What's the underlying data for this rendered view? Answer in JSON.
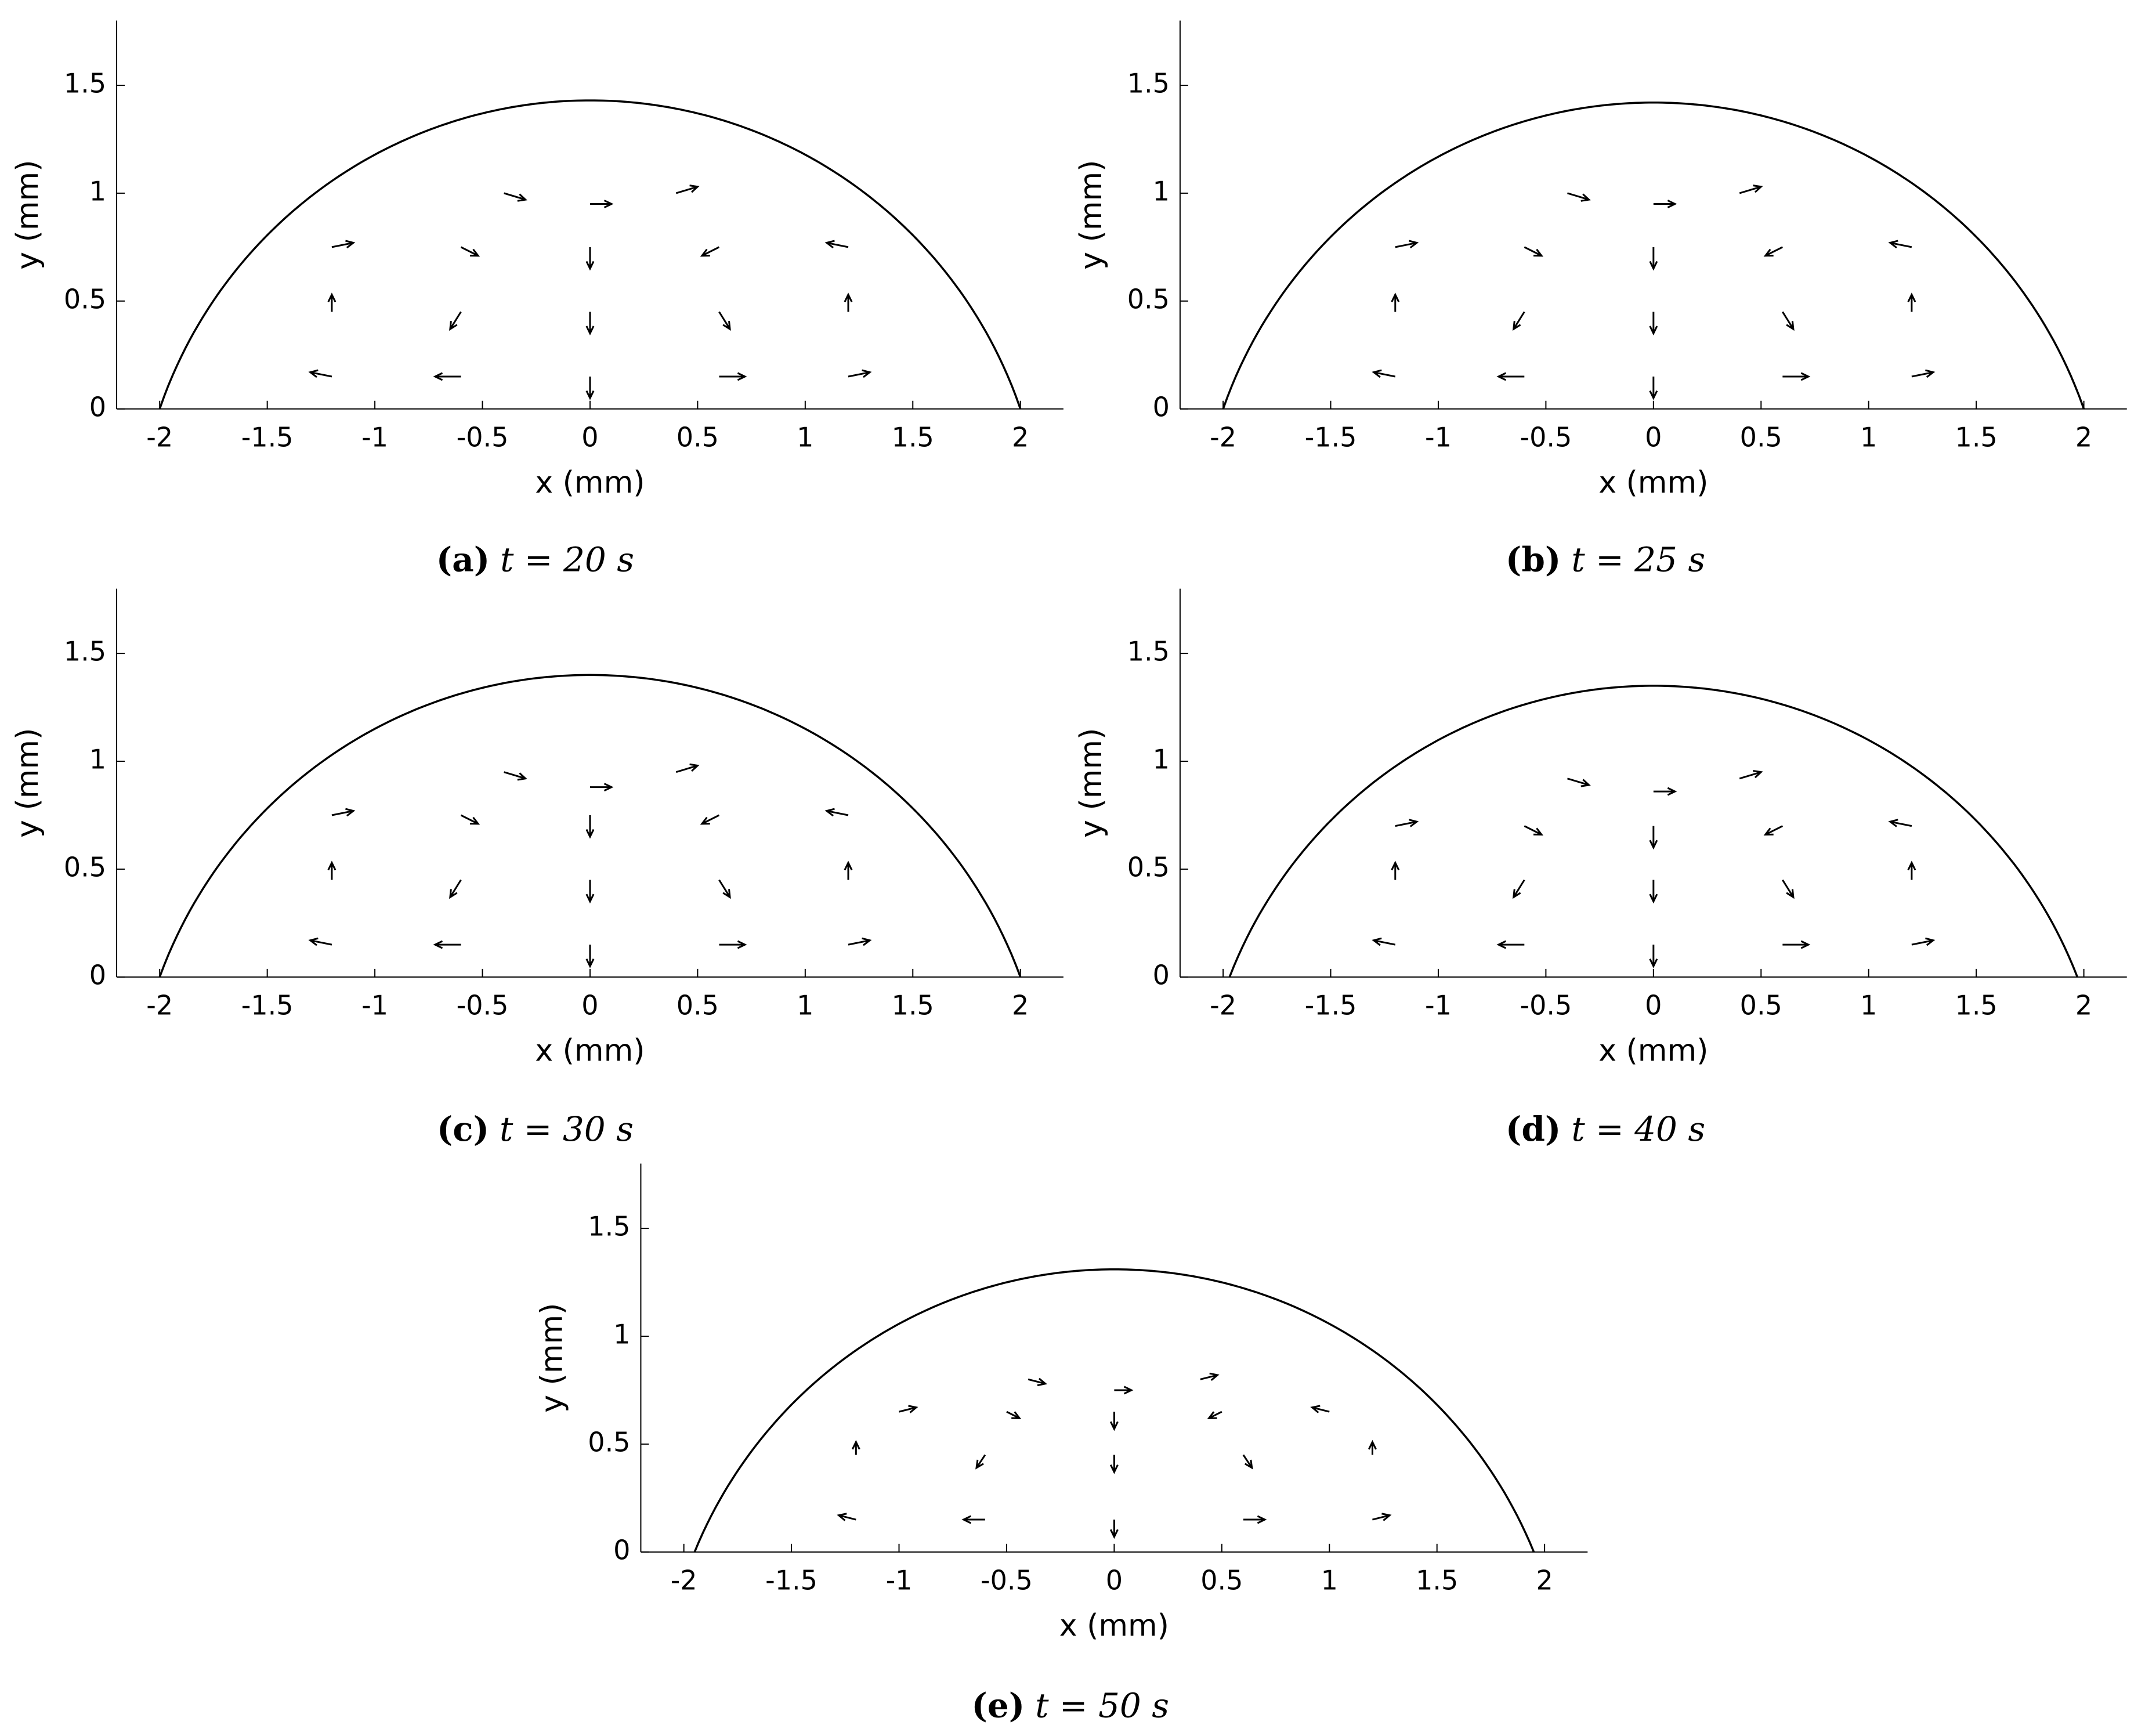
{
  "chart_data": [
    {
      "type": "quiver",
      "label": "(a)",
      "caption": "t = 20 s",
      "xlabel": "x (mm)",
      "ylabel": "y (mm)",
      "color": "#000000",
      "xlim": [
        -2.2,
        2.2
      ],
      "ylim": [
        0,
        1.8
      ],
      "xticks": [
        -2,
        -1.5,
        -1,
        -0.5,
        0,
        0.5,
        1,
        1.5,
        2
      ],
      "yticks": [
        0,
        0.5,
        1,
        1.5
      ],
      "drop": {
        "radius": 2,
        "height": 1.43
      },
      "vectors": {
        "x": [
          -1.2,
          -0.6,
          0,
          0.6,
          1.2,
          -1.2,
          -0.6,
          0,
          0.6,
          1.2,
          -1.2,
          -0.6,
          0,
          0.6,
          1.2,
          -0.4,
          0,
          0.4
        ],
        "y": [
          0.15,
          0.15,
          0.15,
          0.15,
          0.15,
          0.45,
          0.45,
          0.45,
          0.45,
          0.45,
          0.75,
          0.75,
          0.75,
          0.75,
          0.75,
          1.0,
          0.95,
          1.0
        ],
        "u": [
          -0.1,
          -0.12,
          0,
          0.12,
          0.1,
          0,
          -0.05,
          0,
          0.05,
          0,
          0.1,
          0.08,
          0,
          -0.08,
          -0.1,
          0.1,
          0.1,
          0.1
        ],
        "v": [
          0.02,
          0,
          -0.1,
          0,
          0.02,
          0.08,
          -0.08,
          -0.1,
          -0.08,
          0.08,
          0.02,
          -0.04,
          -0.1,
          -0.04,
          0.02,
          -0.03,
          0,
          0.03
        ]
      }
    },
    {
      "type": "quiver",
      "label": "(b)",
      "caption": "t = 25 s",
      "xlabel": "x (mm)",
      "ylabel": "y (mm)",
      "color": "#000000",
      "xlim": [
        -2.2,
        2.2
      ],
      "ylim": [
        0,
        1.8
      ],
      "xticks": [
        -2,
        -1.5,
        -1,
        -0.5,
        0,
        0.5,
        1,
        1.5,
        2
      ],
      "yticks": [
        0,
        0.5,
        1,
        1.5
      ],
      "drop": {
        "radius": 2,
        "height": 1.42
      },
      "vectors": {
        "x": [
          -1.2,
          -0.6,
          0,
          0.6,
          1.2,
          -1.2,
          -0.6,
          0,
          0.6,
          1.2,
          -1.2,
          -0.6,
          0,
          0.6,
          1.2,
          -0.4,
          0,
          0.4
        ],
        "y": [
          0.15,
          0.15,
          0.15,
          0.15,
          0.15,
          0.45,
          0.45,
          0.45,
          0.45,
          0.45,
          0.75,
          0.75,
          0.75,
          0.75,
          0.75,
          1.0,
          0.95,
          1.0
        ],
        "u": [
          -0.1,
          -0.12,
          0,
          0.12,
          0.1,
          0,
          -0.05,
          0,
          0.05,
          0,
          0.1,
          0.08,
          0,
          -0.08,
          -0.1,
          0.1,
          0.1,
          0.1
        ],
        "v": [
          0.02,
          0,
          -0.1,
          0,
          0.02,
          0.08,
          -0.08,
          -0.1,
          -0.08,
          0.08,
          0.02,
          -0.04,
          -0.1,
          -0.04,
          0.02,
          -0.03,
          0,
          0.03
        ]
      }
    },
    {
      "type": "quiver",
      "label": "(c)",
      "caption": "t = 30 s",
      "xlabel": "x (mm)",
      "ylabel": "y (mm)",
      "color": "#000000",
      "xlim": [
        -2.2,
        2.2
      ],
      "ylim": [
        0,
        1.8
      ],
      "xticks": [
        -2,
        -1.5,
        -1,
        -0.5,
        0,
        0.5,
        1,
        1.5,
        2
      ],
      "yticks": [
        0,
        0.5,
        1,
        1.5
      ],
      "drop": {
        "radius": 2,
        "height": 1.4
      },
      "vectors": {
        "x": [
          -1.2,
          -0.6,
          0,
          0.6,
          1.2,
          -1.2,
          -0.6,
          0,
          0.6,
          1.2,
          -1.2,
          -0.6,
          0,
          0.6,
          1.2,
          -0.4,
          0,
          0.4
        ],
        "y": [
          0.15,
          0.15,
          0.15,
          0.15,
          0.15,
          0.45,
          0.45,
          0.45,
          0.45,
          0.45,
          0.75,
          0.75,
          0.75,
          0.75,
          0.75,
          0.95,
          0.88,
          0.95
        ],
        "u": [
          -0.1,
          -0.12,
          0,
          0.12,
          0.1,
          0,
          -0.05,
          0,
          0.05,
          0,
          0.1,
          0.08,
          0,
          -0.08,
          -0.1,
          0.1,
          0.1,
          0.1
        ],
        "v": [
          0.02,
          0,
          -0.1,
          0,
          0.02,
          0.08,
          -0.08,
          -0.1,
          -0.08,
          0.08,
          0.02,
          -0.04,
          -0.1,
          -0.04,
          0.02,
          -0.03,
          0,
          0.03
        ]
      }
    },
    {
      "type": "quiver",
      "label": "(d)",
      "caption": "t = 40 s",
      "xlabel": "x (mm)",
      "ylabel": "y (mm)",
      "color": "#000000",
      "xlim": [
        -2.2,
        2.2
      ],
      "ylim": [
        0,
        1.8
      ],
      "xticks": [
        -2,
        -1.5,
        -1,
        -0.5,
        0,
        0.5,
        1,
        1.5,
        2
      ],
      "yticks": [
        0,
        0.5,
        1,
        1.5
      ],
      "drop": {
        "radius": 1.97,
        "height": 1.35
      },
      "vectors": {
        "x": [
          -1.2,
          -0.6,
          0,
          0.6,
          1.2,
          -1.2,
          -0.6,
          0,
          0.6,
          1.2,
          -1.2,
          -0.6,
          0,
          0.6,
          1.2,
          -0.4,
          0,
          0.4
        ],
        "y": [
          0.15,
          0.15,
          0.15,
          0.15,
          0.15,
          0.45,
          0.45,
          0.45,
          0.45,
          0.45,
          0.7,
          0.7,
          0.7,
          0.7,
          0.7,
          0.92,
          0.86,
          0.92
        ],
        "u": [
          -0.1,
          -0.12,
          0,
          0.12,
          0.1,
          0,
          -0.05,
          0,
          0.05,
          0,
          0.1,
          0.08,
          0,
          -0.08,
          -0.1,
          0.1,
          0.1,
          0.1
        ],
        "v": [
          0.02,
          0,
          -0.1,
          0,
          0.02,
          0.08,
          -0.08,
          -0.1,
          -0.08,
          0.08,
          0.02,
          -0.04,
          -0.1,
          -0.04,
          0.02,
          -0.03,
          0,
          0.03
        ]
      }
    },
    {
      "type": "quiver",
      "label": "(e)",
      "caption": "t = 50 s",
      "xlabel": "x (mm)",
      "ylabel": "y (mm)",
      "color": "#000000",
      "xlim": [
        -2.2,
        2.2
      ],
      "ylim": [
        0,
        1.8
      ],
      "xticks": [
        -2,
        -1.5,
        -1,
        -0.5,
        0,
        0.5,
        1,
        1.5,
        2
      ],
      "yticks": [
        0,
        0.5,
        1,
        1.5
      ],
      "drop": {
        "radius": 1.95,
        "height": 1.31
      },
      "vectors": {
        "x": [
          -1.2,
          -0.6,
          0,
          0.6,
          1.2,
          -1.2,
          -0.6,
          0,
          0.6,
          1.2,
          -1.0,
          -0.5,
          0,
          0.5,
          1.0,
          -0.4,
          0,
          0.4
        ],
        "y": [
          0.15,
          0.15,
          0.15,
          0.15,
          0.15,
          0.45,
          0.45,
          0.45,
          0.45,
          0.45,
          0.65,
          0.65,
          0.65,
          0.65,
          0.65,
          0.8,
          0.75,
          0.8
        ],
        "u": [
          -0.08,
          -0.1,
          0,
          0.1,
          0.08,
          0,
          -0.04,
          0,
          0.04,
          0,
          0.08,
          0.06,
          0,
          -0.06,
          -0.08,
          0.08,
          0.08,
          0.08
        ],
        "v": [
          0.02,
          0,
          -0.08,
          0,
          0.02,
          0.06,
          -0.06,
          -0.08,
          -0.06,
          0.06,
          0.02,
          -0.03,
          -0.08,
          -0.03,
          0.02,
          -0.02,
          0,
          0.02
        ]
      }
    }
  ]
}
